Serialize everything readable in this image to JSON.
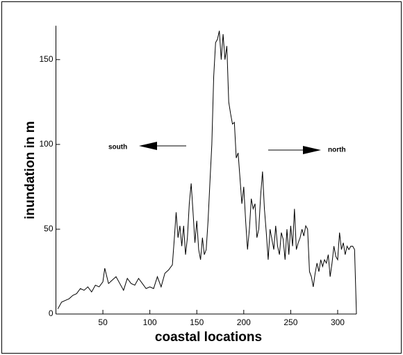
{
  "chart_data": {
    "type": "line",
    "x_label": "coastal locations",
    "y_label": "inundation in m",
    "annotations": [
      "south",
      "north"
    ],
    "x": [
      2,
      6,
      10,
      14,
      18,
      22,
      26,
      30,
      34,
      38,
      42,
      46,
      50,
      52,
      56,
      60,
      64,
      68,
      72,
      76,
      80,
      84,
      88,
      92,
      96,
      100,
      104,
      108,
      112,
      116,
      120,
      124,
      126,
      128,
      130,
      132,
      134,
      136,
      138,
      140,
      142,
      144,
      146,
      148,
      150,
      152,
      154,
      156,
      158,
      160,
      162,
      164,
      166,
      168,
      170,
      172,
      174,
      176,
      178,
      180,
      182,
      184,
      186,
      188,
      190,
      192,
      194,
      196,
      198,
      200,
      202,
      204,
      206,
      208,
      210,
      212,
      214,
      216,
      218,
      220,
      222,
      224,
      226,
      228,
      230,
      232,
      234,
      236,
      238,
      240,
      242,
      244,
      246,
      248,
      250,
      252,
      254,
      256,
      258,
      260,
      262,
      264,
      266,
      268,
      270,
      272,
      274,
      276,
      278,
      280,
      282,
      284,
      286,
      288,
      290,
      292,
      294,
      296,
      298,
      300,
      302,
      304,
      306,
      308,
      310,
      312,
      314,
      316,
      318,
      320
    ],
    "values": [
      3,
      7,
      8,
      9,
      11,
      12,
      15,
      14,
      16,
      13,
      17,
      16,
      19,
      27,
      18,
      20,
      22,
      18,
      14,
      21,
      18,
      17,
      21,
      18,
      15,
      16,
      15,
      22,
      16,
      24,
      26,
      29,
      44,
      60,
      45,
      52,
      40,
      52,
      35,
      45,
      65,
      77,
      60,
      42,
      55,
      38,
      32,
      45,
      35,
      38,
      55,
      78,
      100,
      140,
      160,
      162,
      167,
      150,
      165,
      150,
      158,
      125,
      118,
      112,
      113,
      92,
      95,
      80,
      65,
      75,
      55,
      38,
      50,
      68,
      62,
      65,
      45,
      50,
      70,
      84,
      62,
      48,
      32,
      50,
      44,
      38,
      52,
      40,
      35,
      48,
      44,
      32,
      50,
      35,
      52,
      40,
      62,
      38,
      42,
      45,
      50,
      46,
      52,
      50,
      25,
      22,
      16,
      24,
      30,
      25,
      32,
      28,
      32,
      30,
      35,
      22,
      30,
      40,
      34,
      32,
      48,
      38,
      42,
      35,
      40,
      38,
      40,
      40,
      38,
      0
    ],
    "color": "#000000",
    "xlim": [
      0,
      320
    ],
    "ylim": [
      0,
      170
    ],
    "xticks": [
      50,
      100,
      150,
      200,
      250,
      300
    ],
    "yticks": [
      0,
      50,
      100,
      150
    ]
  }
}
